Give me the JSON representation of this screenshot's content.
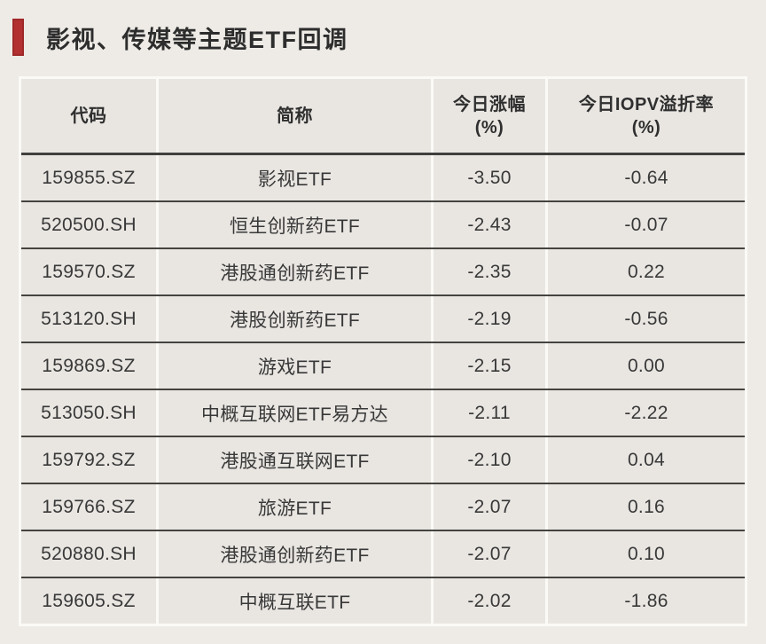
{
  "page": {
    "background_color": "#eeebe6",
    "accent_red": "#b23030",
    "dark_line_color": "#45433f",
    "table_border_color": "#fbfaf7"
  },
  "title": {
    "text": "影视、传媒等主题ETF回调"
  },
  "table": {
    "headers": [
      {
        "line1": "代码",
        "line2": ""
      },
      {
        "line1": "简称",
        "line2": ""
      },
      {
        "line1": "今日涨幅",
        "line2": "(%)"
      },
      {
        "line1": "今日IOPV溢折率",
        "line2": "(%)"
      }
    ]
  },
  "chart_data": {
    "type": "table",
    "title": "影视、传媒等主题ETF回调",
    "columns": [
      "代码",
      "简称",
      "今日涨幅(%)",
      "今日IOPV溢折率(%)"
    ],
    "rows": [
      [
        "159855.SZ",
        "影视ETF",
        "-3.50",
        "-0.64"
      ],
      [
        "520500.SH",
        "恒生创新药ETF",
        "-2.43",
        "-0.07"
      ],
      [
        "159570.SZ",
        "港股通创新药ETF",
        "-2.35",
        "0.22"
      ],
      [
        "513120.SH",
        "港股创新药ETF",
        "-2.19",
        "-0.56"
      ],
      [
        "159869.SZ",
        "游戏ETF",
        "-2.15",
        "0.00"
      ],
      [
        "513050.SH",
        "中概互联网ETF易方达",
        "-2.11",
        "-2.22"
      ],
      [
        "159792.SZ",
        "港股通互联网ETF",
        "-2.10",
        "0.04"
      ],
      [
        "159766.SZ",
        "旅游ETF",
        "-2.07",
        "0.16"
      ],
      [
        "520880.SH",
        "港股通创新药ETF",
        "-2.07",
        "0.10"
      ],
      [
        "159605.SZ",
        "中概互联ETF",
        "-2.02",
        "-1.86"
      ]
    ]
  }
}
